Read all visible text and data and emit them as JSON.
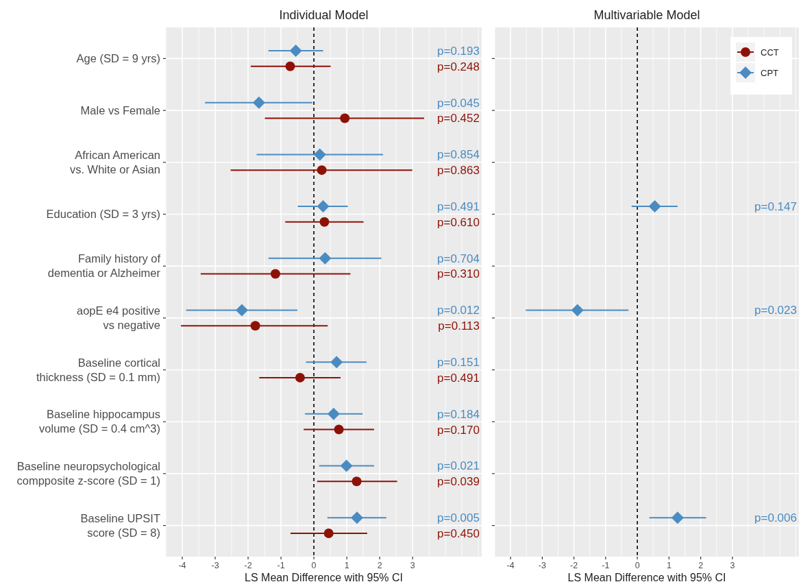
{
  "chart_data": [
    {
      "type": "scatter",
      "orientation": "horizontal",
      "title": "Individual Model",
      "xlabel": "LS Mean Difference with 95% CI",
      "categories": [
        "Age (SD = 9 yrs)",
        "Male vs Female",
        "African American\nvs. White or Asian",
        "Education (SD = 3 yrs)",
        "Family history of\ndementia or Alzheimer",
        "aopE e4 positive\nvs negative",
        "Baseline cortical\nthickness (SD = 0.1 mm)",
        "Baseline hippocampus\nvolume (SD = 0.4 cm^3)",
        "Baseline neuropsychological\ncompposite z-score (SD = 1)",
        "Baseline UPSIT\nscore (SD = 8)"
      ],
      "xlim": [
        -4.5,
        5.1
      ],
      "xticks": [
        -4,
        -3,
        -2,
        -1,
        0,
        1,
        2,
        3
      ],
      "grid": true,
      "legend": false,
      "ref_lines": [
        {
          "axis": "x",
          "value": 0,
          "color": "#000000",
          "line_style": "dashed"
        }
      ],
      "series": [
        {
          "color": "#8e1106",
          "marker": "circle",
          "values": [
            -0.72,
            0.94,
            0.24,
            0.32,
            -1.17,
            -1.78,
            -0.42,
            0.76,
            1.3,
            0.45
          ],
          "errors": [
            [
              -1.92,
              0.51
            ],
            [
              -1.49,
              3.35
            ],
            [
              -2.53,
              2.99
            ],
            [
              -0.87,
              1.51
            ],
            [
              -3.44,
              1.11
            ],
            [
              -4.04,
              0.42
            ],
            [
              -1.66,
              0.81
            ],
            [
              -0.31,
              1.83
            ],
            [
              0.1,
              2.53
            ],
            [
              -0.71,
              1.62
            ]
          ]
        },
        {
          "color": "#4a8bc2",
          "marker": "diamond",
          "values": [
            -0.55,
            -1.67,
            0.18,
            0.28,
            0.34,
            -2.19,
            0.69,
            0.6,
            0.99,
            1.31
          ],
          "errors": [
            [
              -1.38,
              0.28
            ],
            [
              -3.31,
              -0.05
            ],
            [
              -1.74,
              2.1
            ],
            [
              -0.49,
              1.03
            ],
            [
              -1.38,
              2.05
            ],
            [
              -3.88,
              -0.5
            ],
            [
              -0.24,
              1.6
            ],
            [
              -0.27,
              1.48
            ],
            [
              0.16,
              1.83
            ],
            [
              0.41,
              2.2
            ]
          ]
        }
      ],
      "annotations": [
        "p=0.193",
        "p=0.248",
        "p=0.045",
        "p=0.452",
        "p=0.854",
        "p=0.863",
        "p=0.491",
        "p=0.610",
        "p=0.704",
        "p=0.310",
        "p=0.012",
        "p=0.113",
        "p=0.151",
        "p=0.491",
        "p=0.184",
        "p=0.170",
        "p=0.021",
        "p=0.039",
        "p=0.005",
        "p=0.450"
      ]
    },
    {
      "type": "scatter",
      "orientation": "horizontal",
      "title": "Multivariable Model",
      "xlabel": "LS Mean Difference with 95% CI",
      "categories": [
        null,
        null,
        null,
        null,
        null,
        null,
        null,
        null,
        null,
        null
      ],
      "tick_labels": "x",
      "xlim": [
        -4.5,
        5.1
      ],
      "xticks": [
        -4,
        -3,
        -2,
        -1,
        0,
        1,
        2,
        3
      ],
      "grid": true,
      "legend": "top right",
      "ref_lines": [
        {
          "axis": "x",
          "value": 0,
          "color": "#000000",
          "line_style": "dashed"
        }
      ],
      "series": [
        {
          "name": "CCT",
          "color": "#8e1106",
          "marker": "circle",
          "values": [
            null,
            null,
            null,
            null,
            null,
            null,
            null,
            null,
            null,
            null
          ]
        },
        {
          "name": "CPT",
          "color": "#4a8bc2",
          "marker": "diamond",
          "values": [
            null,
            null,
            null,
            0.55,
            null,
            -1.89,
            null,
            null,
            null,
            1.27
          ],
          "errors": [
            null,
            null,
            null,
            [
              -0.18,
              1.27
            ],
            null,
            [
              -3.52,
              -0.28
            ],
            null,
            null,
            null,
            [
              0.38,
              2.17
            ]
          ]
        }
      ],
      "annotations": [
        "p=0.147",
        "p=0.023",
        "p=0.006"
      ]
    }
  ]
}
